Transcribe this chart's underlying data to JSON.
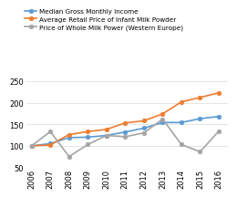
{
  "years": [
    2006,
    2007,
    2008,
    2009,
    2010,
    2011,
    2012,
    2013,
    2014,
    2015,
    2016
  ],
  "median_gross_monthly_income": [
    100,
    105,
    119,
    120,
    124,
    132,
    141,
    154,
    154,
    163,
    168
  ],
  "avg_retail_price_infant_milk": [
    100,
    102,
    126,
    133,
    138,
    153,
    158,
    174,
    202,
    212,
    223
  ],
  "price_whole_milk_powder_we": [
    100,
    133,
    75,
    103,
    124,
    121,
    130,
    162,
    103,
    86,
    134
  ],
  "line_colors": [
    "#5B9BD5",
    "#ED7D31",
    "#A5A5A5"
  ],
  "legend_labels": [
    "Median Gross Monthly Income",
    "Average Retail Price of Infant Milk Powder",
    "Price of Whole Milk Power (Western Europe)"
  ],
  "ylim": [
    50,
    270
  ],
  "yticks": [
    50,
    100,
    150,
    200,
    250
  ],
  "xlim": [
    2005.7,
    2016.5
  ],
  "grid_color": "#E0E0E0",
  "background_color": "#FFFFFF",
  "legend_fontsize": 5.2,
  "tick_fontsize": 6.0,
  "linewidth": 1.2,
  "markersize": 3.5
}
